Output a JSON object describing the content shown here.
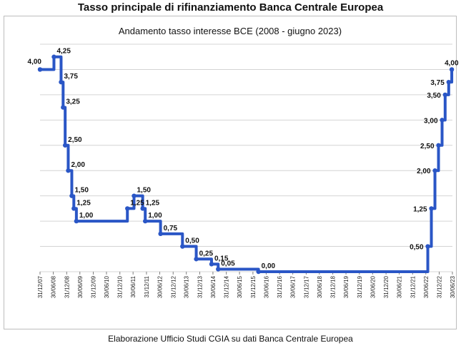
{
  "header": {
    "title": "Tasso principale di rifinanziamento Banca Centrale Europea"
  },
  "footer": {
    "text": "Elaborazione Ufficio Studi CGIA su dati Banca Centrale Europea"
  },
  "colors": {
    "line": "#2a56c6",
    "grid": "#d4d4d4",
    "axis": "#808080"
  },
  "chart_data": {
    "type": "line",
    "title": "Andamento tasso interesse BCE (2008 - giugno 2023)",
    "xlabel": "",
    "ylabel": "",
    "ylim": [
      0,
      4.5
    ],
    "grid": true,
    "legend": "none",
    "x_ticks": [
      "31/12/07",
      "30/06/08",
      "31/12/08",
      "30/06/09",
      "31/12/09",
      "30/06/10",
      "31/12/10",
      "30/06/11",
      "31/12/11",
      "30/06/12",
      "31/12/12",
      "30/06/13",
      "31/12/13",
      "30/06/14",
      "31/12/14",
      "30/06/15",
      "31/12/15",
      "30/06/16",
      "31/12/16",
      "30/06/17",
      "31/12/17",
      "30/06/18",
      "31/12/18",
      "30/06/19",
      "31/12/19",
      "30/06/20",
      "31/12/20",
      "30/06/21",
      "31/12/21",
      "30/06/22",
      "31/12/22",
      "30/06/23"
    ],
    "series": [
      {
        "x": [
          "31/12/07",
          "09/07/08",
          "15/10/08",
          "12/11/08",
          "10/12/08",
          "21/01/09",
          "11/03/09",
          "08/04/09",
          "13/05/09",
          "13/04/11",
          "13/07/11",
          "09/11/11",
          "14/12/11",
          "11/07/12",
          "08/05/13",
          "13/11/13",
          "11/06/14",
          "10/09/14",
          "16/03/16",
          "27/07/22",
          "14/09/22",
          "02/11/22",
          "21/12/22",
          "08/02/23",
          "22/03/23",
          "10/05/23",
          "21/06/23"
        ],
        "values": [
          4.0,
          4.25,
          3.75,
          3.25,
          2.5,
          2.0,
          1.5,
          1.25,
          1.0,
          1.25,
          1.5,
          1.25,
          1.0,
          0.75,
          0.5,
          0.25,
          0.15,
          0.05,
          0.0,
          0.5,
          1.25,
          2.0,
          2.5,
          3.0,
          3.5,
          3.75,
          4.0
        ],
        "labels": [
          "4,00",
          "4,25",
          "3,75",
          "3,25",
          "2,50",
          "2,00",
          "1,50",
          "1,25",
          "1,00",
          "1,25",
          "1,50",
          "1,25",
          "1,00",
          "0,75",
          "0,50",
          "0,25",
          "0,15",
          "0,05",
          "0,00",
          "0,50",
          "1,25",
          "2,00",
          "2,50",
          "3,00",
          "3,50",
          "3,75",
          "4,00"
        ],
        "x_end": "30/06/23"
      }
    ]
  }
}
